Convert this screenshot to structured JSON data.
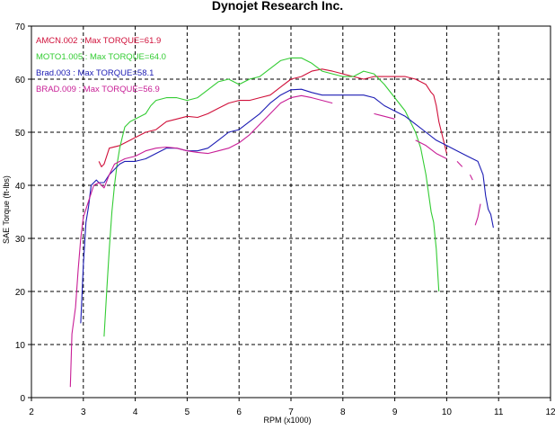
{
  "chart_data": {
    "type": "line",
    "title": "Dynojet Research Inc.",
    "xlabel": "RPM (x1000)",
    "ylabel": "SAE Torque (ft-lbs)",
    "xlim": [
      2,
      12
    ],
    "ylim": [
      0,
      70
    ],
    "x_ticks": [
      "2",
      "3",
      "4",
      "5",
      "6",
      "7",
      "8",
      "9",
      "10",
      "11",
      "12"
    ],
    "y_ticks": [
      "0",
      "10",
      "20",
      "30",
      "40",
      "50",
      "60",
      "70"
    ],
    "grid": true,
    "legend_position": "top-left",
    "series": [
      {
        "name": "AMCN.002 : Max TORQUE=61.9",
        "color": "#d0103a",
        "points": [
          [
            3.3,
            44.5
          ],
          [
            3.35,
            43.5
          ],
          [
            3.4,
            44.0
          ],
          [
            3.5,
            47.0
          ],
          [
            3.7,
            47.5
          ],
          [
            3.9,
            48.5
          ],
          [
            4.0,
            49.0
          ],
          [
            4.2,
            50.0
          ],
          [
            4.4,
            50.5
          ],
          [
            4.6,
            52.0
          ],
          [
            4.8,
            52.5
          ],
          [
            5.0,
            53.0
          ],
          [
            5.2,
            52.8
          ],
          [
            5.4,
            53.5
          ],
          [
            5.6,
            54.5
          ],
          [
            5.8,
            55.5
          ],
          [
            6.0,
            56.0
          ],
          [
            6.2,
            56.0
          ],
          [
            6.4,
            56.5
          ],
          [
            6.6,
            57.0
          ],
          [
            6.8,
            58.5
          ],
          [
            7.0,
            60.0
          ],
          [
            7.2,
            60.5
          ],
          [
            7.4,
            61.5
          ],
          [
            7.6,
            61.9
          ],
          [
            7.8,
            61.5
          ],
          [
            8.0,
            61.0
          ],
          [
            8.2,
            60.5
          ],
          [
            8.4,
            60.0
          ],
          [
            8.6,
            60.5
          ],
          [
            8.8,
            60.5
          ],
          [
            9.0,
            60.5
          ],
          [
            9.2,
            60.5
          ],
          [
            9.4,
            60.0
          ],
          [
            9.6,
            59.0
          ],
          [
            9.7,
            57.5
          ],
          [
            9.75,
            57.0
          ],
          [
            9.8,
            55.0
          ],
          [
            9.85,
            52.0
          ],
          [
            9.9,
            50.0
          ],
          [
            9.95,
            48.0
          ],
          [
            10.0,
            46.0
          ]
        ]
      },
      {
        "name": "MOTO1.005 : Max TORQUE=64.0",
        "color": "#33cc33",
        "points": [
          [
            3.4,
            11.5
          ],
          [
            3.45,
            20.0
          ],
          [
            3.5,
            28.0
          ],
          [
            3.55,
            35.0
          ],
          [
            3.6,
            40.0
          ],
          [
            3.65,
            44.0
          ],
          [
            3.7,
            47.0
          ],
          [
            3.75,
            49.0
          ],
          [
            3.8,
            51.0
          ],
          [
            3.9,
            52.0
          ],
          [
            4.0,
            52.5
          ],
          [
            4.2,
            53.5
          ],
          [
            4.3,
            55.0
          ],
          [
            4.4,
            56.0
          ],
          [
            4.6,
            56.5
          ],
          [
            4.8,
            56.5
          ],
          [
            5.0,
            56.0
          ],
          [
            5.2,
            56.5
          ],
          [
            5.4,
            58.0
          ],
          [
            5.6,
            59.5
          ],
          [
            5.8,
            60.0
          ],
          [
            6.0,
            59.0
          ],
          [
            6.2,
            60.0
          ],
          [
            6.4,
            60.5
          ],
          [
            6.6,
            62.0
          ],
          [
            6.8,
            63.5
          ],
          [
            7.0,
            64.0
          ],
          [
            7.2,
            64.0
          ],
          [
            7.4,
            63.0
          ],
          [
            7.6,
            61.5
          ],
          [
            7.8,
            61.0
          ],
          [
            8.0,
            60.5
          ],
          [
            8.2,
            60.5
          ],
          [
            8.4,
            61.5
          ],
          [
            8.6,
            61.0
          ],
          [
            8.8,
            59.0
          ],
          [
            9.0,
            56.5
          ],
          [
            9.2,
            54.0
          ],
          [
            9.4,
            50.0
          ],
          [
            9.5,
            47.0
          ],
          [
            9.6,
            42.0
          ],
          [
            9.7,
            35.0
          ],
          [
            9.75,
            33.0
          ],
          [
            9.8,
            28.0
          ],
          [
            9.85,
            20.0
          ]
        ]
      },
      {
        "name": "Brad.003 : Max TORQUE=58.1",
        "color": "#1c1cb4",
        "points": [
          [
            2.95,
            14.0
          ],
          [
            3.0,
            25.0
          ],
          [
            3.05,
            33.0
          ],
          [
            3.1,
            36.0
          ],
          [
            3.15,
            40.0
          ],
          [
            3.25,
            41.0
          ],
          [
            3.3,
            40.5
          ],
          [
            3.4,
            40.5
          ],
          [
            3.5,
            42.0
          ],
          [
            3.6,
            43.0
          ],
          [
            3.7,
            44.0
          ],
          [
            3.8,
            44.5
          ],
          [
            4.0,
            44.5
          ],
          [
            4.2,
            45.0
          ],
          [
            4.4,
            46.0
          ],
          [
            4.6,
            47.0
          ],
          [
            4.8,
            47.0
          ],
          [
            5.0,
            46.5
          ],
          [
            5.2,
            46.5
          ],
          [
            5.4,
            47.0
          ],
          [
            5.6,
            48.5
          ],
          [
            5.8,
            50.0
          ],
          [
            6.0,
            50.5
          ],
          [
            6.2,
            52.0
          ],
          [
            6.4,
            53.5
          ],
          [
            6.6,
            55.5
          ],
          [
            6.8,
            57.0
          ],
          [
            7.0,
            58.0
          ],
          [
            7.2,
            58.1
          ],
          [
            7.4,
            57.5
          ],
          [
            7.6,
            57.0
          ],
          [
            7.8,
            57.0
          ],
          [
            8.0,
            57.0
          ],
          [
            8.2,
            57.0
          ],
          [
            8.4,
            57.0
          ],
          [
            8.6,
            56.5
          ],
          [
            8.8,
            55.0
          ],
          [
            9.0,
            54.0
          ],
          [
            9.2,
            53.0
          ],
          [
            9.4,
            51.5
          ],
          [
            9.6,
            50.0
          ],
          [
            9.8,
            48.5
          ],
          [
            10.0,
            47.5
          ],
          [
            10.2,
            46.5
          ],
          [
            10.4,
            45.5
          ],
          [
            10.6,
            44.5
          ],
          [
            10.7,
            42.0
          ],
          [
            10.75,
            38.0
          ],
          [
            10.8,
            35.5
          ],
          [
            10.85,
            34.5
          ],
          [
            10.9,
            32.0
          ]
        ]
      },
      {
        "name": "BRAD.009 : Max TORQUE=56.9",
        "color": "#c81e96",
        "points": [
          [
            2.75,
            2.0
          ],
          [
            2.78,
            12.0
          ],
          [
            2.85,
            17.0
          ],
          [
            2.9,
            24.0
          ],
          [
            2.95,
            30.0
          ],
          [
            3.0,
            34.0
          ],
          [
            3.1,
            37.0
          ],
          [
            3.2,
            40.0
          ],
          [
            3.3,
            40.5
          ],
          [
            3.4,
            39.5
          ],
          [
            3.5,
            42.0
          ],
          [
            3.6,
            44.0
          ],
          [
            3.8,
            45.0
          ],
          [
            4.0,
            45.5
          ],
          [
            4.2,
            46.5
          ],
          [
            4.4,
            47.0
          ],
          [
            4.6,
            47.2
          ],
          [
            4.8,
            47.0
          ],
          [
            5.0,
            46.5
          ],
          [
            5.2,
            46.2
          ],
          [
            5.4,
            46.0
          ],
          [
            5.6,
            46.5
          ],
          [
            5.8,
            47.0
          ],
          [
            6.0,
            48.0
          ],
          [
            6.2,
            49.5
          ],
          [
            6.4,
            51.5
          ],
          [
            6.6,
            53.5
          ],
          [
            6.8,
            55.5
          ],
          [
            7.0,
            56.5
          ],
          [
            7.2,
            56.9
          ],
          [
            7.4,
            56.5
          ],
          [
            7.6,
            56.0
          ],
          [
            7.8,
            55.5
          ],
          null,
          [
            8.6,
            53.5
          ],
          [
            8.8,
            53.0
          ],
          [
            9.0,
            52.5
          ],
          null,
          [
            9.4,
            48.5
          ],
          [
            9.6,
            47.5
          ],
          [
            9.8,
            46.0
          ],
          [
            10.0,
            45.0
          ],
          null,
          [
            10.2,
            44.5
          ],
          [
            10.3,
            43.5
          ],
          null,
          [
            10.45,
            42.0
          ],
          [
            10.5,
            41.0
          ],
          null,
          [
            10.55,
            32.5
          ],
          [
            10.6,
            34.0
          ],
          [
            10.65,
            36.5
          ]
        ]
      }
    ]
  }
}
